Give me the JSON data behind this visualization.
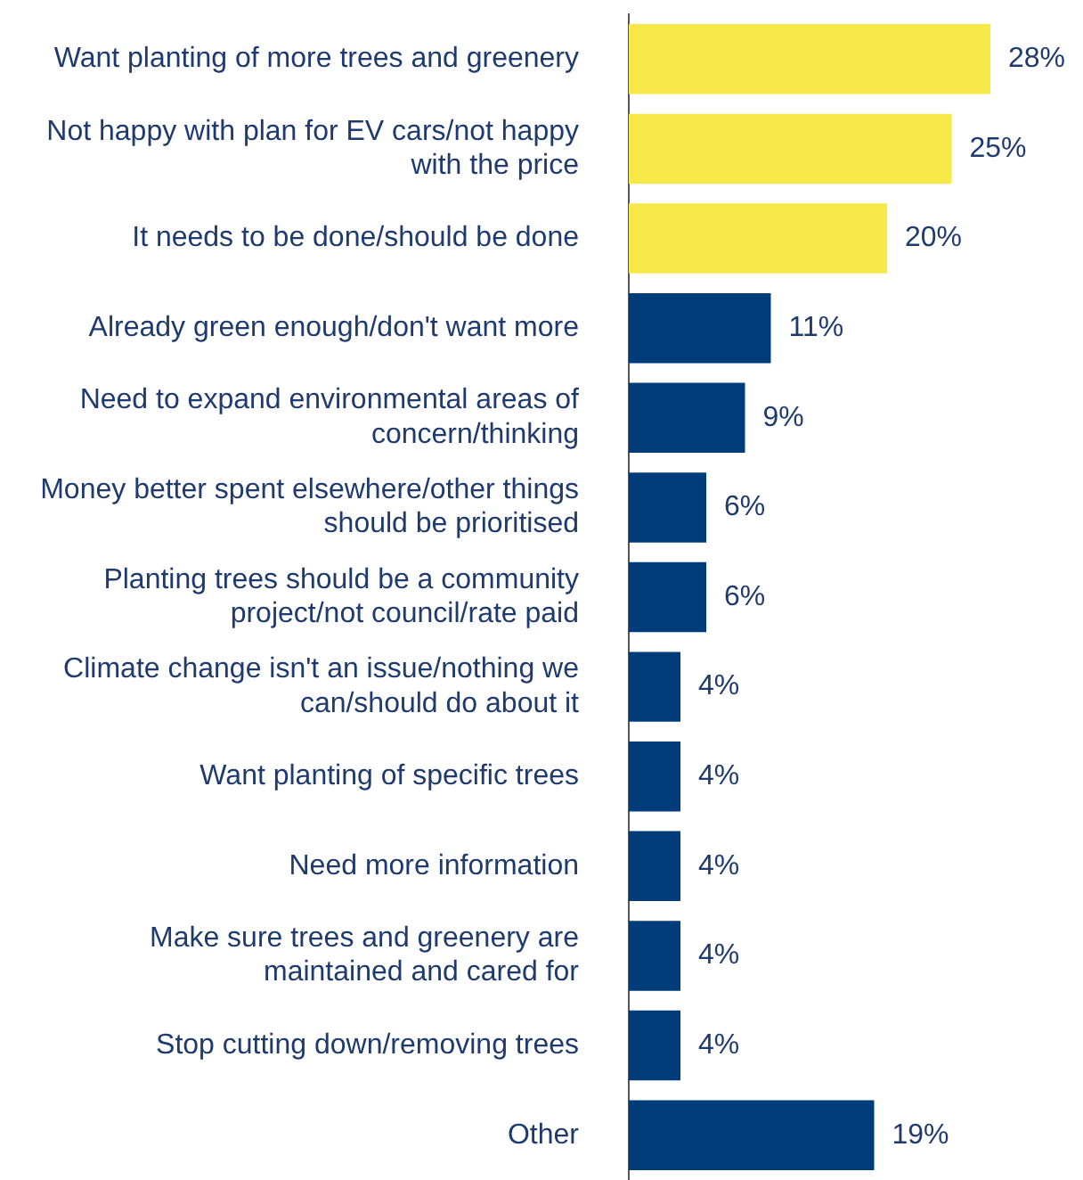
{
  "chart_data": {
    "type": "bar",
    "orientation": "horizontal",
    "legend": false,
    "categories": [
      "Want planting of more trees and greenery",
      "Not happy with plan for EV cars/not happy with the price",
      "It needs to be done/should be done",
      "Already green enough/don't want more",
      "Need to expand environmental areas of concern/thinking",
      "Money better spent elsewhere/other things should be prioritised",
      "Planting trees should be a community project/not council/rate paid",
      "Climate change isn't an issue/nothing we can/should do about it",
      "Want planting of specific trees",
      "Need more information",
      "Make sure trees and greenery are maintained and cared for",
      "Stop cutting down/removing trees",
      "Other"
    ],
    "values": [
      28,
      25,
      20,
      11,
      9,
      6,
      6,
      4,
      4,
      4,
      4,
      4,
      19
    ],
    "value_labels": [
      "28%",
      "25%",
      "20%",
      "11%",
      "9%",
      "6%",
      "6%",
      "4%",
      "4%",
      "4%",
      "4%",
      "4%",
      "19%"
    ],
    "colors": [
      "#f7e84a",
      "#f7e84a",
      "#f7e84a",
      "#003c7a",
      "#003c7a",
      "#003c7a",
      "#003c7a",
      "#003c7a",
      "#003c7a",
      "#003c7a",
      "#003c7a",
      "#003c7a",
      "#003c7a"
    ]
  }
}
